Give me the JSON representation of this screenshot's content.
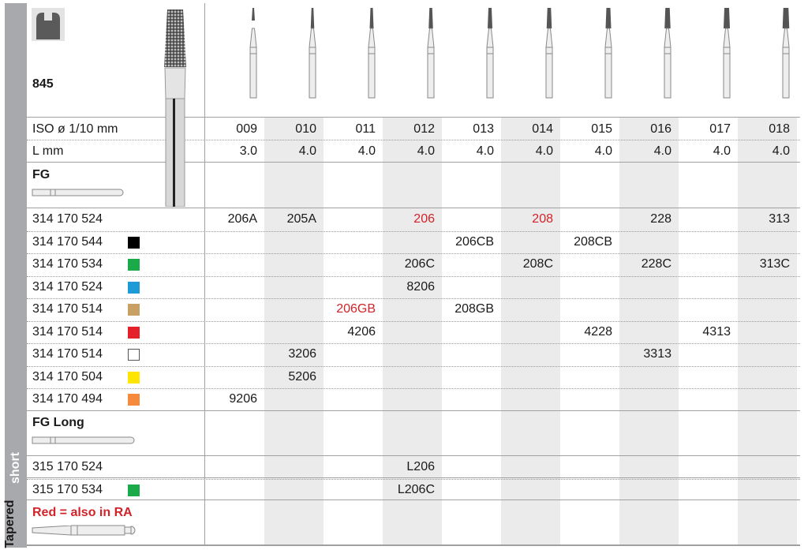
{
  "product": {
    "code": "845",
    "side_label_dark": "Tapered",
    "side_label_light": "short",
    "icon": "tooth-crown-prep-icon"
  },
  "header_rows": {
    "iso_label": "ISO ø 1/10 mm",
    "length_label": "L mm"
  },
  "columns": [
    {
      "iso": "009",
      "length": "3.0"
    },
    {
      "iso": "010",
      "length": "4.0"
    },
    {
      "iso": "011",
      "length": "4.0"
    },
    {
      "iso": "012",
      "length": "4.0"
    },
    {
      "iso": "013",
      "length": "4.0"
    },
    {
      "iso": "014",
      "length": "4.0"
    },
    {
      "iso": "015",
      "length": "4.0"
    },
    {
      "iso": "016",
      "length": "4.0"
    },
    {
      "iso": "017",
      "length": "4.0"
    },
    {
      "iso": "018",
      "length": "4.0"
    }
  ],
  "sections": {
    "fg": "FG",
    "fg_long": "FG Long",
    "legend": "Red = also in RA"
  },
  "colors": {
    "red_text": "#d2232a",
    "shade": "#ebebeb",
    "sidebar": "#a7a9ac"
  },
  "rows": [
    {
      "ref": "314 170 524",
      "swatch": null,
      "cells": {
        "0": "206A",
        "1": "205A",
        "3": "206",
        "5": "208",
        "7": "228",
        "9": "313"
      },
      "red": [
        "3",
        "5"
      ]
    },
    {
      "ref": "314 170 544",
      "swatch": "#000000",
      "cells": {
        "4": "206CB",
        "6": "208CB"
      },
      "red": []
    },
    {
      "ref": "314 170 534",
      "swatch": "#1aaa4a",
      "cells": {
        "3": "206C",
        "5": "208C",
        "7": "228C",
        "9": "313C"
      },
      "red": []
    },
    {
      "ref": "314 170 524",
      "swatch": "#1e9ad6",
      "cells": {
        "3": "8206"
      },
      "red": []
    },
    {
      "ref": "314 170 514",
      "swatch": "#c9a063",
      "cells": {
        "2": "206GB",
        "4": "208GB"
      },
      "red": [
        "2"
      ]
    },
    {
      "ref": "314 170 514",
      "swatch": "#e5202a",
      "cells": {
        "2": "4206",
        "6": "4228",
        "8": "4313"
      },
      "red": []
    },
    {
      "ref": "314 170 514",
      "swatch": "#ffffff",
      "cells": {
        "1": "3206",
        "7": "3313"
      },
      "red": []
    },
    {
      "ref": "314 170 504",
      "swatch": "#ffe500",
      "cells": {
        "1": "5206"
      },
      "red": []
    },
    {
      "ref": "314 170 494",
      "swatch": "#f58a3c",
      "cells": {
        "0": "9206"
      },
      "red": []
    }
  ],
  "long_rows": [
    {
      "ref": "315 170 524",
      "swatch": null,
      "cells": {
        "3": "L206"
      },
      "red": []
    },
    {
      "ref": "315 170 534",
      "swatch": "#1aaa4a",
      "cells": {
        "3": "L206C"
      },
      "red": []
    }
  ]
}
